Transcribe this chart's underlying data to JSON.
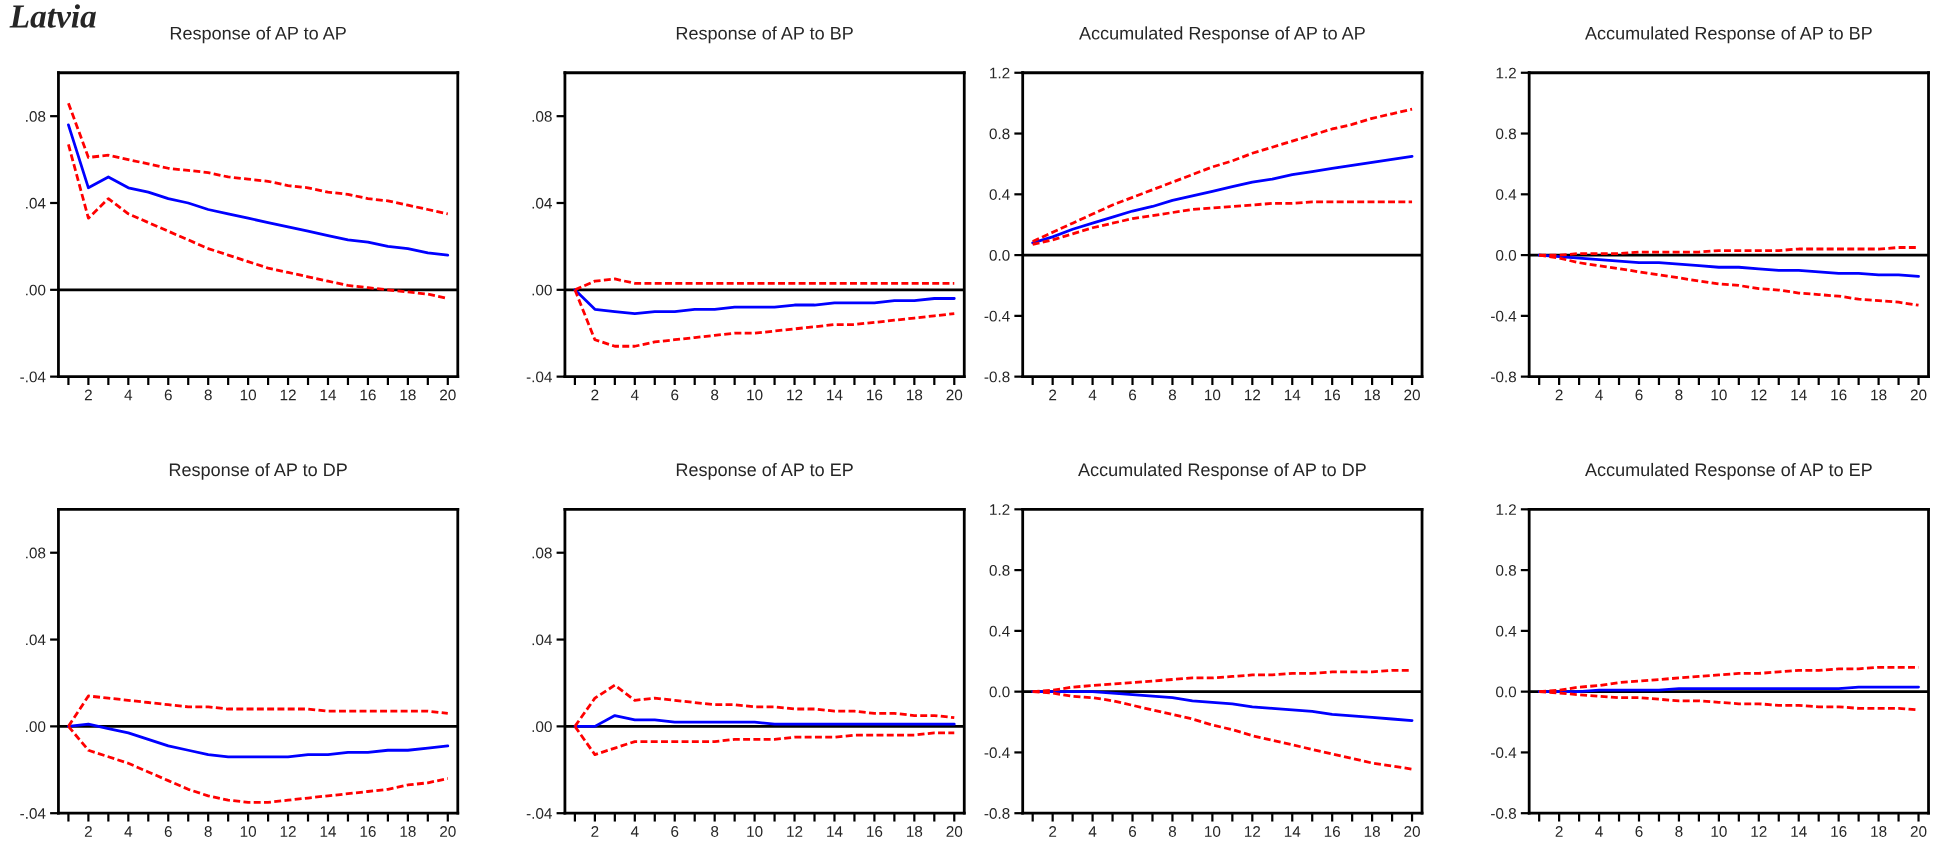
{
  "chart_data": [
    {
      "type": "line",
      "title": "Response of AP to AP",
      "annotations": [
        "Latvia"
      ],
      "x": [
        1,
        2,
        3,
        4,
        5,
        6,
        7,
        8,
        9,
        10,
        11,
        12,
        13,
        14,
        15,
        16,
        17,
        18,
        19,
        20
      ],
      "xlim": [
        0.5,
        20.5
      ],
      "xticks": [
        {
          "value": 1,
          "label": null
        },
        2,
        {
          "value": 3,
          "label": null
        },
        4,
        {
          "value": 5,
          "label": null
        },
        6,
        {
          "value": 7,
          "label": null
        },
        8,
        {
          "value": 9,
          "label": null
        },
        10,
        {
          "value": 11,
          "label": null
        },
        12,
        {
          "value": 13,
          "label": null
        },
        14,
        {
          "value": 15,
          "label": null
        },
        16,
        {
          "value": 17,
          "label": null
        },
        18,
        {
          "value": 19,
          "label": null
        },
        20
      ],
      "ylim": [
        -0.04,
        0.1
      ],
      "yticks": [
        {
          "value": -0.04,
          "label": "-.04"
        },
        {
          "value": 0,
          "label": ".00"
        },
        {
          "value": 0.04,
          "label": ".04"
        },
        {
          "value": 0.08,
          "label": ".08"
        }
      ],
      "ref_lines": [
        {
          "axis": "y",
          "value": 0,
          "color": "#000000"
        }
      ],
      "series": [
        {
          "color": "#0000ff",
          "line_style": "solid",
          "values": [
            0.076,
            0.047,
            0.052,
            0.047,
            0.045,
            0.042,
            0.04,
            0.037,
            0.035,
            0.033,
            0.031,
            0.029,
            0.027,
            0.025,
            0.023,
            0.022,
            0.02,
            0.019,
            0.017,
            0.016
          ]
        },
        {
          "color": "#ff0000",
          "line_style": "dashed",
          "values": [
            0.086,
            0.061,
            0.062,
            0.06,
            0.058,
            0.056,
            0.055,
            0.054,
            0.052,
            0.051,
            0.05,
            0.048,
            0.047,
            0.045,
            0.044,
            0.042,
            0.041,
            0.039,
            0.037,
            0.035
          ]
        },
        {
          "color": "#ff0000",
          "line_style": "dashed",
          "values": [
            0.067,
            0.033,
            0.042,
            0.035,
            0.031,
            0.027,
            0.023,
            0.019,
            0.016,
            0.013,
            0.01,
            0.008,
            0.006,
            0.004,
            0.002,
            0.001,
            0.0,
            -0.001,
            -0.002,
            -0.004
          ]
        }
      ]
    },
    {
      "type": "line",
      "title": "Response of AP to BP",
      "x": [
        1,
        2,
        3,
        4,
        5,
        6,
        7,
        8,
        9,
        10,
        11,
        12,
        13,
        14,
        15,
        16,
        17,
        18,
        19,
        20
      ],
      "xlim": [
        0.5,
        20.5
      ],
      "xticks": [
        {
          "value": 1,
          "label": null
        },
        2,
        {
          "value": 3,
          "label": null
        },
        4,
        {
          "value": 5,
          "label": null
        },
        6,
        {
          "value": 7,
          "label": null
        },
        8,
        {
          "value": 9,
          "label": null
        },
        10,
        {
          "value": 11,
          "label": null
        },
        12,
        {
          "value": 13,
          "label": null
        },
        14,
        {
          "value": 15,
          "label": null
        },
        16,
        {
          "value": 17,
          "label": null
        },
        18,
        {
          "value": 19,
          "label": null
        },
        20
      ],
      "ylim": [
        -0.04,
        0.1
      ],
      "yticks": [
        {
          "value": -0.04,
          "label": "-.04"
        },
        {
          "value": 0,
          "label": ".00"
        },
        {
          "value": 0.04,
          "label": ".04"
        },
        {
          "value": 0.08,
          "label": ".08"
        }
      ],
      "ref_lines": [
        {
          "axis": "y",
          "value": 0,
          "color": "#000000"
        }
      ],
      "series": [
        {
          "color": "#0000ff",
          "line_style": "solid",
          "values": [
            0,
            -0.009,
            -0.01,
            -0.011,
            -0.01,
            -0.01,
            -0.009,
            -0.009,
            -0.008,
            -0.008,
            -0.008,
            -0.007,
            -0.007,
            -0.006,
            -0.006,
            -0.006,
            -0.005,
            -0.005,
            -0.004,
            -0.004
          ]
        },
        {
          "color": "#ff0000",
          "line_style": "dashed",
          "values": [
            0,
            0.004,
            0.005,
            0.003,
            0.003,
            0.003,
            0.003,
            0.003,
            0.003,
            0.003,
            0.003,
            0.003,
            0.003,
            0.003,
            0.003,
            0.003,
            0.003,
            0.003,
            0.003,
            0.003
          ]
        },
        {
          "color": "#ff0000",
          "line_style": "dashed",
          "values": [
            0,
            -0.023,
            -0.026,
            -0.026,
            -0.024,
            -0.023,
            -0.022,
            -0.021,
            -0.02,
            -0.02,
            -0.019,
            -0.018,
            -0.017,
            -0.016,
            -0.016,
            -0.015,
            -0.014,
            -0.013,
            -0.012,
            -0.011
          ]
        }
      ]
    },
    {
      "type": "line",
      "title": "Accumulated Response of AP to AP",
      "x": [
        1,
        2,
        3,
        4,
        5,
        6,
        7,
        8,
        9,
        10,
        11,
        12,
        13,
        14,
        15,
        16,
        17,
        18,
        19,
        20
      ],
      "xlim": [
        0.5,
        20.5
      ],
      "xticks": [
        {
          "value": 1,
          "label": null
        },
        2,
        {
          "value": 3,
          "label": null
        },
        4,
        {
          "value": 5,
          "label": null
        },
        6,
        {
          "value": 7,
          "label": null
        },
        8,
        {
          "value": 9,
          "label": null
        },
        10,
        {
          "value": 11,
          "label": null
        },
        12,
        {
          "value": 13,
          "label": null
        },
        14,
        {
          "value": 15,
          "label": null
        },
        16,
        {
          "value": 17,
          "label": null
        },
        18,
        {
          "value": 19,
          "label": null
        },
        20
      ],
      "ylim": [
        -0.8,
        1.2
      ],
      "yticks": [
        -0.8,
        -0.4,
        {
          "value": 0,
          "label": "0.0"
        },
        0.4,
        0.8,
        1.2
      ],
      "ref_lines": [
        {
          "axis": "y",
          "value": 0,
          "color": "#000000"
        }
      ],
      "series": [
        {
          "color": "#0000ff",
          "line_style": "solid",
          "values": [
            0.08,
            0.12,
            0.17,
            0.21,
            0.25,
            0.29,
            0.32,
            0.36,
            0.39,
            0.42,
            0.45,
            0.48,
            0.5,
            0.53,
            0.55,
            0.57,
            0.59,
            0.61,
            0.63,
            0.65
          ]
        },
        {
          "color": "#ff0000",
          "line_style": "dashed",
          "values": [
            0.09,
            0.15,
            0.21,
            0.27,
            0.33,
            0.38,
            0.43,
            0.48,
            0.53,
            0.58,
            0.62,
            0.67,
            0.71,
            0.75,
            0.79,
            0.83,
            0.86,
            0.9,
            0.93,
            0.96
          ]
        },
        {
          "color": "#ff0000",
          "line_style": "dashed",
          "values": [
            0.07,
            0.1,
            0.14,
            0.18,
            0.21,
            0.24,
            0.26,
            0.28,
            0.3,
            0.31,
            0.32,
            0.33,
            0.34,
            0.34,
            0.35,
            0.35,
            0.35,
            0.35,
            0.35,
            0.35
          ]
        }
      ]
    },
    {
      "type": "line",
      "title": "Accumulated Response of AP to BP",
      "x": [
        1,
        2,
        3,
        4,
        5,
        6,
        7,
        8,
        9,
        10,
        11,
        12,
        13,
        14,
        15,
        16,
        17,
        18,
        19,
        20
      ],
      "xlim": [
        0.5,
        20.5
      ],
      "xticks": [
        {
          "value": 1,
          "label": null
        },
        2,
        {
          "value": 3,
          "label": null
        },
        4,
        {
          "value": 5,
          "label": null
        },
        6,
        {
          "value": 7,
          "label": null
        },
        8,
        {
          "value": 9,
          "label": null
        },
        10,
        {
          "value": 11,
          "label": null
        },
        12,
        {
          "value": 13,
          "label": null
        },
        14,
        {
          "value": 15,
          "label": null
        },
        16,
        {
          "value": 17,
          "label": null
        },
        18,
        {
          "value": 19,
          "label": null
        },
        20
      ],
      "ylim": [
        -0.8,
        1.2
      ],
      "yticks": [
        -0.8,
        -0.4,
        {
          "value": 0,
          "label": "0.0"
        },
        0.4,
        0.8,
        1.2
      ],
      "ref_lines": [
        {
          "axis": "y",
          "value": 0,
          "color": "#000000"
        }
      ],
      "series": [
        {
          "color": "#0000ff",
          "line_style": "solid",
          "values": [
            0,
            -0.01,
            -0.02,
            -0.03,
            -0.04,
            -0.05,
            -0.05,
            -0.06,
            -0.07,
            -0.08,
            -0.08,
            -0.09,
            -0.1,
            -0.1,
            -0.11,
            -0.12,
            -0.12,
            -0.13,
            -0.13,
            -0.14
          ]
        },
        {
          "color": "#ff0000",
          "line_style": "dashed",
          "values": [
            0,
            0.0,
            0.01,
            0.01,
            0.01,
            0.02,
            0.02,
            0.02,
            0.02,
            0.03,
            0.03,
            0.03,
            0.03,
            0.04,
            0.04,
            0.04,
            0.04,
            0.04,
            0.05,
            0.05
          ]
        },
        {
          "color": "#ff0000",
          "line_style": "dashed",
          "values": [
            0,
            -0.02,
            -0.05,
            -0.07,
            -0.09,
            -0.11,
            -0.13,
            -0.15,
            -0.17,
            -0.19,
            -0.2,
            -0.22,
            -0.23,
            -0.25,
            -0.26,
            -0.27,
            -0.29,
            -0.3,
            -0.31,
            -0.33
          ]
        }
      ]
    },
    {
      "type": "line",
      "title": "Response of AP to DP",
      "x": [
        1,
        2,
        3,
        4,
        5,
        6,
        7,
        8,
        9,
        10,
        11,
        12,
        13,
        14,
        15,
        16,
        17,
        18,
        19,
        20
      ],
      "xlim": [
        0.5,
        20.5
      ],
      "xticks": [
        {
          "value": 1,
          "label": null
        },
        2,
        {
          "value": 3,
          "label": null
        },
        4,
        {
          "value": 5,
          "label": null
        },
        6,
        {
          "value": 7,
          "label": null
        },
        8,
        {
          "value": 9,
          "label": null
        },
        10,
        {
          "value": 11,
          "label": null
        },
        12,
        {
          "value": 13,
          "label": null
        },
        14,
        {
          "value": 15,
          "label": null
        },
        16,
        {
          "value": 17,
          "label": null
        },
        18,
        {
          "value": 19,
          "label": null
        },
        20
      ],
      "ylim": [
        -0.04,
        0.1
      ],
      "yticks": [
        {
          "value": -0.04,
          "label": "-.04"
        },
        {
          "value": 0,
          "label": ".00"
        },
        {
          "value": 0.04,
          "label": ".04"
        },
        {
          "value": 0.08,
          "label": ".08"
        }
      ],
      "ref_lines": [
        {
          "axis": "y",
          "value": 0,
          "color": "#000000"
        }
      ],
      "series": [
        {
          "color": "#0000ff",
          "line_style": "solid",
          "values": [
            0,
            0.001,
            -0.001,
            -0.003,
            -0.006,
            -0.009,
            -0.011,
            -0.013,
            -0.014,
            -0.014,
            -0.014,
            -0.014,
            -0.013,
            -0.013,
            -0.012,
            -0.012,
            -0.011,
            -0.011,
            -0.01,
            -0.009
          ]
        },
        {
          "color": "#ff0000",
          "line_style": "dashed",
          "values": [
            0,
            0.014,
            0.013,
            0.012,
            0.011,
            0.01,
            0.009,
            0.009,
            0.008,
            0.008,
            0.008,
            0.008,
            0.008,
            0.007,
            0.007,
            0.007,
            0.007,
            0.007,
            0.007,
            0.006
          ]
        },
        {
          "color": "#ff0000",
          "line_style": "dashed",
          "values": [
            0,
            -0.011,
            -0.014,
            -0.017,
            -0.021,
            -0.025,
            -0.029,
            -0.032,
            -0.034,
            -0.035,
            -0.035,
            -0.034,
            -0.033,
            -0.032,
            -0.031,
            -0.03,
            -0.029,
            -0.027,
            -0.026,
            -0.024
          ]
        }
      ]
    },
    {
      "type": "line",
      "title": "Response of AP to EP",
      "x": [
        1,
        2,
        3,
        4,
        5,
        6,
        7,
        8,
        9,
        10,
        11,
        12,
        13,
        14,
        15,
        16,
        17,
        18,
        19,
        20
      ],
      "xlim": [
        0.5,
        20.5
      ],
      "xticks": [
        {
          "value": 1,
          "label": null
        },
        2,
        {
          "value": 3,
          "label": null
        },
        4,
        {
          "value": 5,
          "label": null
        },
        6,
        {
          "value": 7,
          "label": null
        },
        8,
        {
          "value": 9,
          "label": null
        },
        10,
        {
          "value": 11,
          "label": null
        },
        12,
        {
          "value": 13,
          "label": null
        },
        14,
        {
          "value": 15,
          "label": null
        },
        16,
        {
          "value": 17,
          "label": null
        },
        18,
        {
          "value": 19,
          "label": null
        },
        20
      ],
      "ylim": [
        -0.04,
        0.1
      ],
      "yticks": [
        {
          "value": -0.04,
          "label": "-.04"
        },
        {
          "value": 0,
          "label": ".00"
        },
        {
          "value": 0.04,
          "label": ".04"
        },
        {
          "value": 0.08,
          "label": ".08"
        }
      ],
      "ref_lines": [
        {
          "axis": "y",
          "value": 0,
          "color": "#000000"
        }
      ],
      "series": [
        {
          "color": "#0000ff",
          "line_style": "solid",
          "values": [
            0,
            0,
            0.005,
            0.003,
            0.003,
            0.002,
            0.002,
            0.002,
            0.002,
            0.002,
            0.001,
            0.001,
            0.001,
            0.001,
            0.001,
            0.001,
            0.001,
            0.001,
            0.001,
            0.001
          ]
        },
        {
          "color": "#ff0000",
          "line_style": "dashed",
          "values": [
            0,
            0.013,
            0.019,
            0.012,
            0.013,
            0.012,
            0.011,
            0.01,
            0.01,
            0.009,
            0.009,
            0.008,
            0.008,
            0.007,
            0.007,
            0.006,
            0.006,
            0.005,
            0.005,
            0.004
          ]
        },
        {
          "color": "#ff0000",
          "line_style": "dashed",
          "values": [
            0,
            -0.013,
            -0.01,
            -0.007,
            -0.007,
            -0.007,
            -0.007,
            -0.007,
            -0.006,
            -0.006,
            -0.006,
            -0.005,
            -0.005,
            -0.005,
            -0.004,
            -0.004,
            -0.004,
            -0.004,
            -0.003,
            -0.003
          ]
        }
      ]
    },
    {
      "type": "line",
      "title": "Accumulated Response of AP to DP",
      "x": [
        1,
        2,
        3,
        4,
        5,
        6,
        7,
        8,
        9,
        10,
        11,
        12,
        13,
        14,
        15,
        16,
        17,
        18,
        19,
        20
      ],
      "xlim": [
        0.5,
        20.5
      ],
      "xticks": [
        {
          "value": 1,
          "label": null
        },
        2,
        {
          "value": 3,
          "label": null
        },
        4,
        {
          "value": 5,
          "label": null
        },
        6,
        {
          "value": 7,
          "label": null
        },
        8,
        {
          "value": 9,
          "label": null
        },
        10,
        {
          "value": 11,
          "label": null
        },
        12,
        {
          "value": 13,
          "label": null
        },
        14,
        {
          "value": 15,
          "label": null
        },
        16,
        {
          "value": 17,
          "label": null
        },
        18,
        {
          "value": 19,
          "label": null
        },
        20
      ],
      "ylim": [
        -0.8,
        1.2
      ],
      "yticks": [
        -0.8,
        -0.4,
        {
          "value": 0,
          "label": "0.0"
        },
        0.4,
        0.8,
        1.2
      ],
      "ref_lines": [
        {
          "axis": "y",
          "value": 0,
          "color": "#000000"
        }
      ],
      "series": [
        {
          "color": "#0000ff",
          "line_style": "solid",
          "values": [
            0,
            0.0,
            0,
            0.0,
            -0.01,
            -0.02,
            -0.03,
            -0.04,
            -0.06,
            -0.07,
            -0.08,
            -0.1,
            -0.11,
            -0.12,
            -0.13,
            -0.15,
            -0.16,
            -0.17,
            -0.18,
            -0.19
          ]
        },
        {
          "color": "#ff0000",
          "line_style": "dashed",
          "values": [
            0,
            0.01,
            0.03,
            0.04,
            0.05,
            0.06,
            0.07,
            0.08,
            0.09,
            0.09,
            0.1,
            0.11,
            0.11,
            0.12,
            0.12,
            0.13,
            0.13,
            0.13,
            0.14,
            0.14
          ]
        },
        {
          "color": "#ff0000",
          "line_style": "dashed",
          "values": [
            0,
            -0.01,
            -0.03,
            -0.04,
            -0.06,
            -0.09,
            -0.12,
            -0.15,
            -0.18,
            -0.22,
            -0.25,
            -0.29,
            -0.32,
            -0.35,
            -0.38,
            -0.41,
            -0.44,
            -0.47,
            -0.49,
            -0.51
          ]
        }
      ]
    },
    {
      "type": "line",
      "title": "Accumulated Response of AP to EP",
      "x": [
        1,
        2,
        3,
        4,
        5,
        6,
        7,
        8,
        9,
        10,
        11,
        12,
        13,
        14,
        15,
        16,
        17,
        18,
        19,
        20
      ],
      "xlim": [
        0.5,
        20.5
      ],
      "xticks": [
        {
          "value": 1,
          "label": null
        },
        2,
        {
          "value": 3,
          "label": null
        },
        4,
        {
          "value": 5,
          "label": null
        },
        6,
        {
          "value": 7,
          "label": null
        },
        8,
        {
          "value": 9,
          "label": null
        },
        10,
        {
          "value": 11,
          "label": null
        },
        12,
        {
          "value": 13,
          "label": null
        },
        14,
        {
          "value": 15,
          "label": null
        },
        16,
        {
          "value": 17,
          "label": null
        },
        18,
        {
          "value": 19,
          "label": null
        },
        20
      ],
      "ylim": [
        -0.8,
        1.2
      ],
      "yticks": [
        -0.8,
        -0.4,
        {
          "value": 0,
          "label": "0.0"
        },
        0.4,
        0.8,
        1.2
      ],
      "ref_lines": [
        {
          "axis": "y",
          "value": 0,
          "color": "#000000"
        }
      ],
      "series": [
        {
          "color": "#0000ff",
          "line_style": "solid",
          "values": [
            0,
            0,
            0.0,
            0.01,
            0.01,
            0.01,
            0.01,
            0.02,
            0.02,
            0.02,
            0.02,
            0.02,
            0.02,
            0.02,
            0.02,
            0.02,
            0.03,
            0.03,
            0.03,
            0.03
          ]
        },
        {
          "color": "#ff0000",
          "line_style": "dashed",
          "values": [
            0,
            0.01,
            0.03,
            0.04,
            0.06,
            0.07,
            0.08,
            0.09,
            0.1,
            0.11,
            0.12,
            0.12,
            0.13,
            0.14,
            0.14,
            0.15,
            0.15,
            0.16,
            0.16,
            0.16
          ]
        },
        {
          "color": "#ff0000",
          "line_style": "dashed",
          "values": [
            0,
            -0.01,
            -0.02,
            -0.03,
            -0.04,
            -0.04,
            -0.05,
            -0.06,
            -0.06,
            -0.07,
            -0.08,
            -0.08,
            -0.09,
            -0.09,
            -0.1,
            -0.1,
            -0.11,
            -0.11,
            -0.11,
            -0.12
          ]
        }
      ]
    }
  ]
}
